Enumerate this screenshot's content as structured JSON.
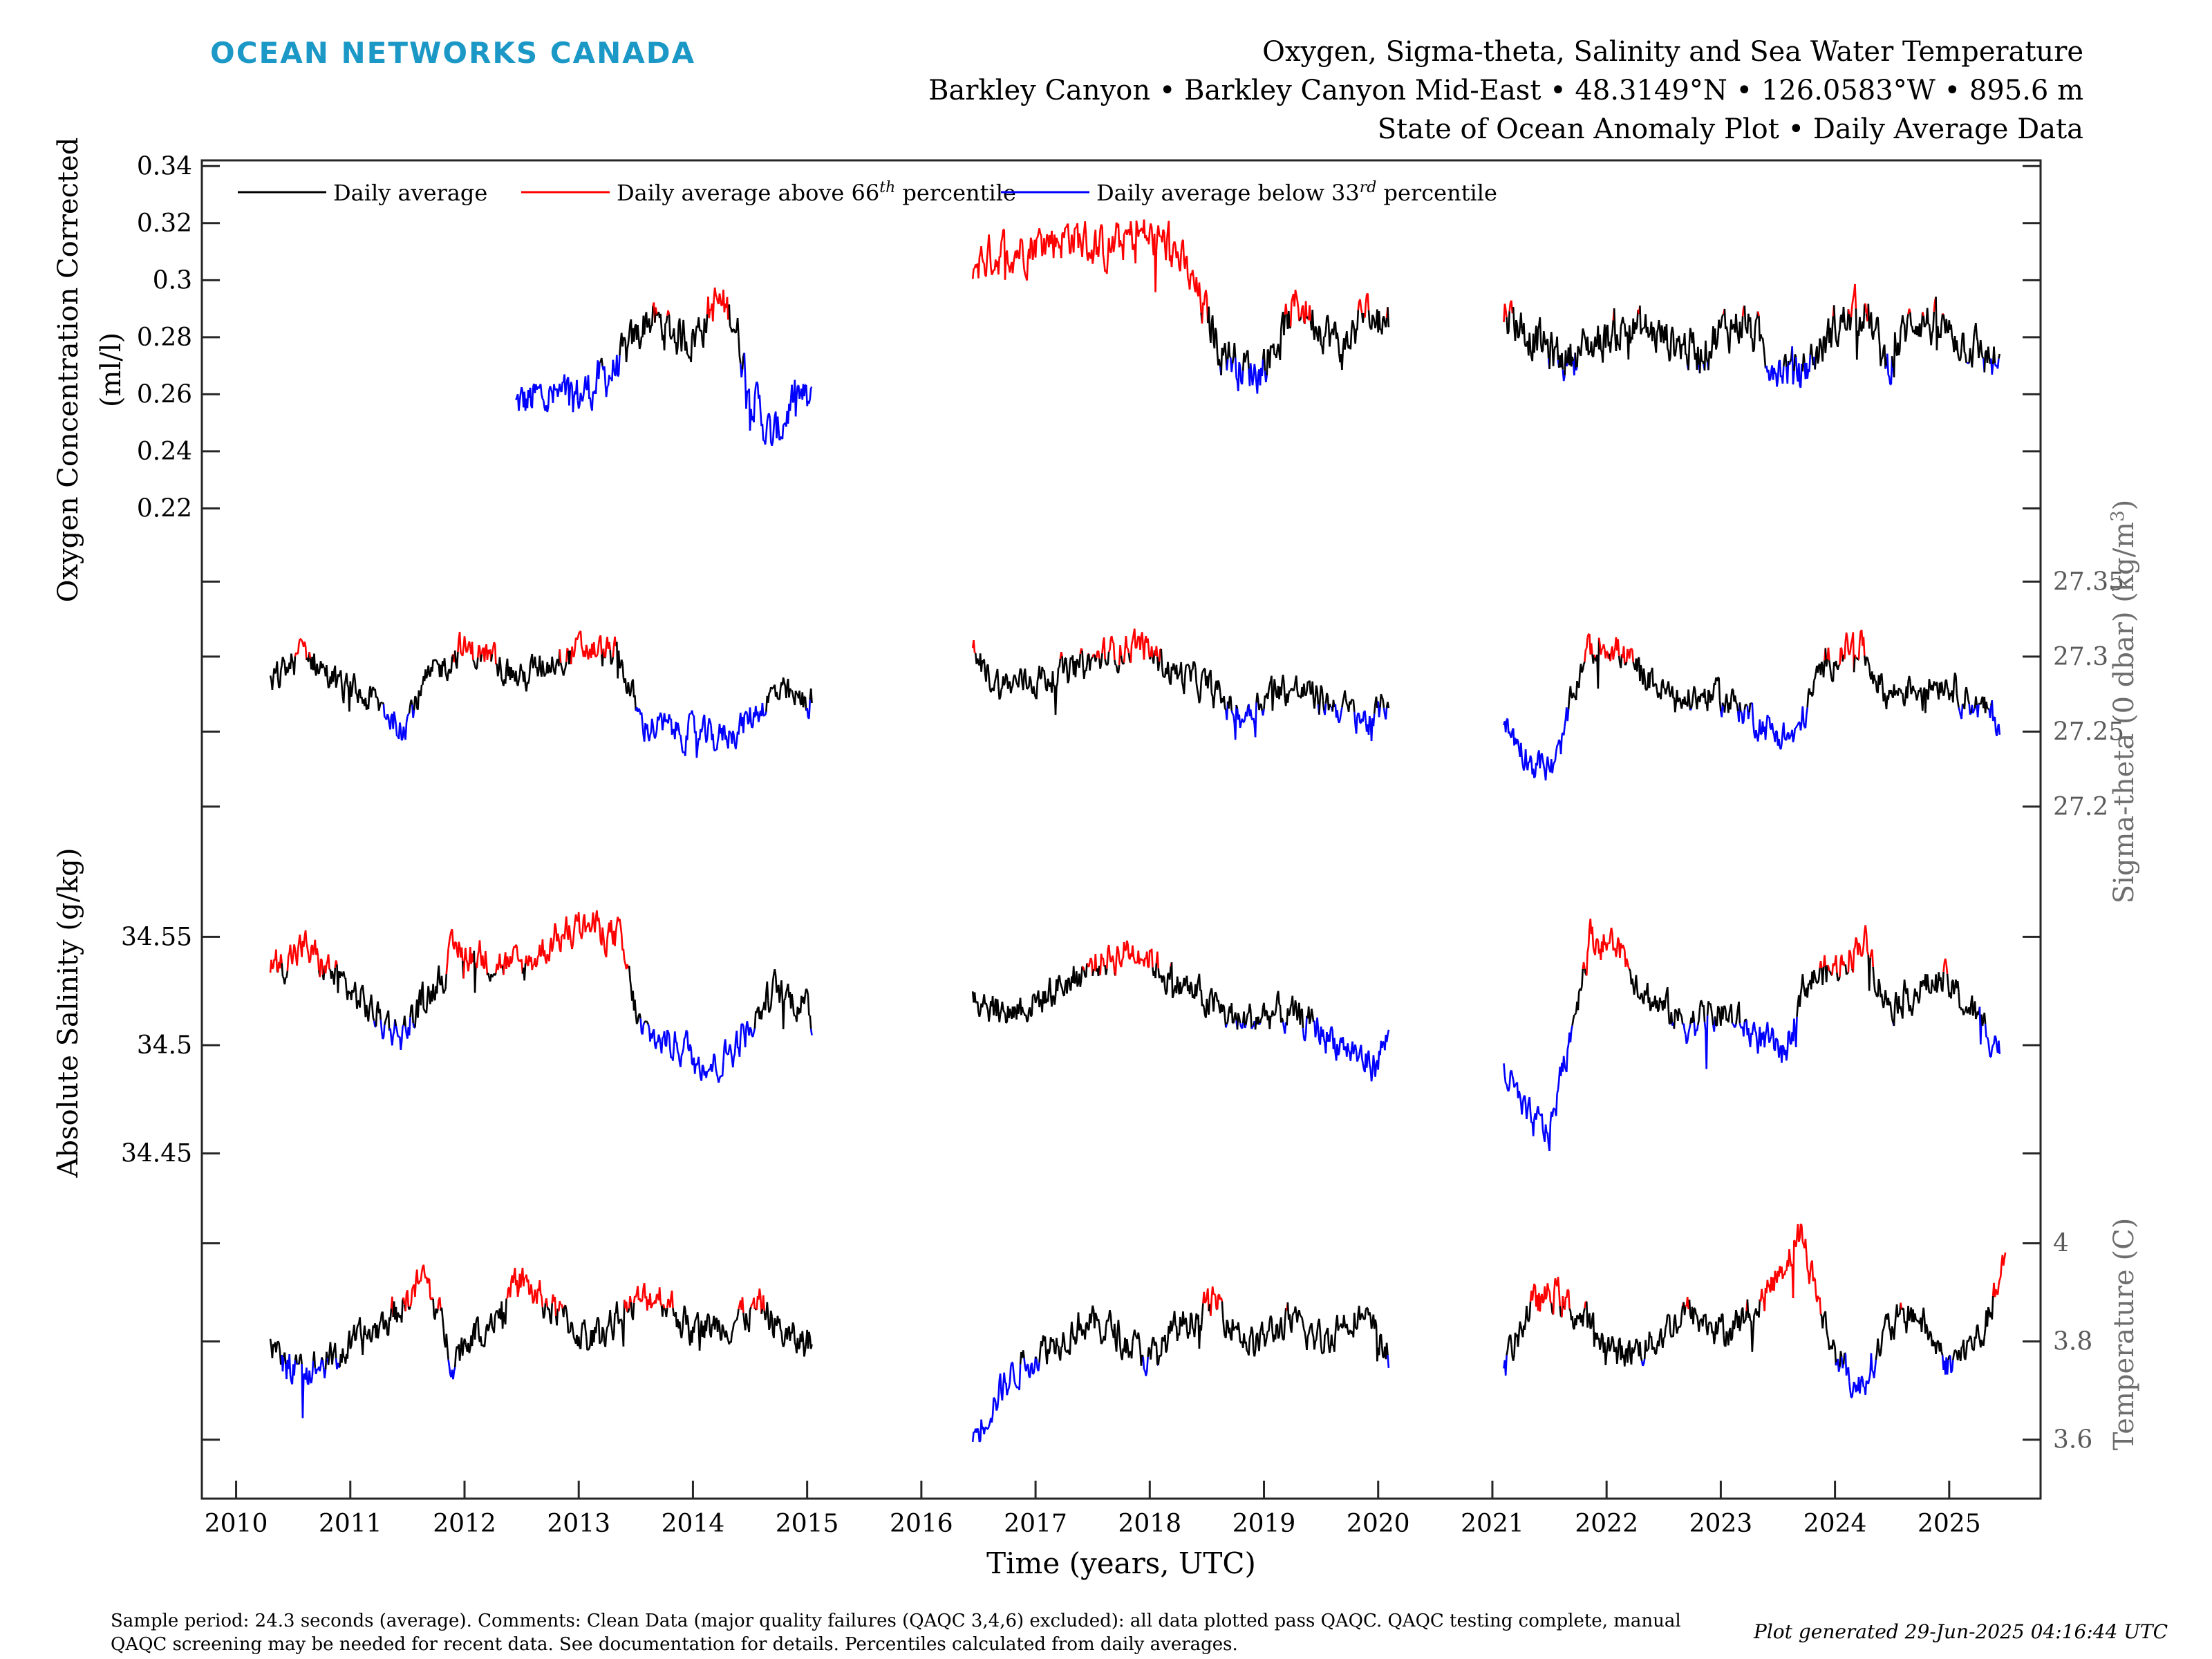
{
  "brand": "OCEAN NETWORKS CANADA",
  "header": {
    "line1": "Oxygen, Sigma-theta, Salinity and Sea Water Temperature",
    "line2": "Barkley Canyon • Barkley Canyon Mid-East • 48.3149°N • 126.0583°W • 895.6 m",
    "line3": "State of Ocean Anomaly Plot • Daily Average Data"
  },
  "footer": {
    "comment": "Sample period: 24.3 seconds (average). Comments: Clean Data (major quality failures (QAQC 3,4,6) excluded): all data plotted pass QAQC. QAQC testing complete, manual QAQC screening may be needed for recent data. See documentation for details. Percentiles calculated from daily averages.",
    "generated": "Plot generated 29-Jun-2025 04:16:44 UTC"
  },
  "legend": [
    {
      "label": "Daily average",
      "sup": "",
      "suffix": "",
      "color": "#000000"
    },
    {
      "label": "Daily average above 66",
      "sup": "th",
      "suffix": " percentile",
      "color": "#ff0000"
    },
    {
      "label": "Daily average below 33",
      "sup": "rd",
      "suffix": " percentile",
      "color": "#0000ff"
    }
  ],
  "chart_data": {
    "type": "line",
    "x_axis": {
      "label": "Time (years, UTC)",
      "range": [
        2009.7,
        2025.8
      ],
      "ticks": [
        "2010",
        "2011",
        "2012",
        "2013",
        "2014",
        "2015",
        "2016",
        "2017",
        "2018",
        "2019",
        "2020",
        "2021",
        "2022",
        "2023",
        "2024",
        "2025"
      ]
    },
    "colors": {
      "average": "#000000",
      "above_66th": "#ff0000",
      "below_33rd": "#0000ff"
    },
    "panels": [
      {
        "id": "oxygen",
        "ylabel_line1": "Oxygen Concentration Corrected",
        "ylabel_line2": "(ml/l)",
        "side": "left",
        "range": [
          0.2,
          0.342
        ],
        "ticks": [
          "0.22",
          "0.24",
          "0.26",
          "0.28",
          "0.3",
          "0.32",
          "0.34"
        ],
        "p33": 0.271,
        "p66": 0.288,
        "segments": [
          {
            "x": [
              2012.45,
              2012.7,
              2012.95,
              2013.2,
              2013.4,
              2013.6,
              2013.8,
              2014.0,
              2014.2,
              2014.35,
              2014.5,
              2014.7,
              2014.9,
              2015.05
            ],
            "y": [
              0.256,
              0.259,
              0.258,
              0.265,
              0.272,
              0.287,
              0.282,
              0.28,
              0.292,
              0.288,
              0.262,
              0.243,
              0.26,
              0.255
            ]
          },
          {
            "x": [
              2016.45,
              2016.7,
              2017.0,
              2017.3,
              2017.6,
              2017.9,
              2018.2,
              2018.4,
              2018.6,
              2018.8,
              2018.95,
              2019.1,
              2019.3,
              2019.5,
              2019.7,
              2019.85,
              2020.1
            ],
            "y": [
              0.306,
              0.31,
              0.313,
              0.316,
              0.31,
              0.316,
              0.312,
              0.296,
              0.278,
              0.27,
              0.268,
              0.278,
              0.292,
              0.285,
              0.275,
              0.288,
              0.286
            ]
          },
          {
            "x": [
              2021.1,
              2021.3,
              2021.6,
              2021.9,
              2022.2,
              2022.5,
              2022.8,
              2023.0,
              2023.2,
              2023.45,
              2023.7,
              2024.0,
              2024.25,
              2024.45,
              2024.7,
              2024.9,
              2025.15,
              2025.45
            ],
            "y": [
              0.29,
              0.282,
              0.272,
              0.278,
              0.284,
              0.28,
              0.275,
              0.282,
              0.286,
              0.272,
              0.267,
              0.283,
              0.291,
              0.27,
              0.288,
              0.283,
              0.279,
              0.269
            ]
          }
        ]
      },
      {
        "id": "sigma",
        "ylabel_line1": "Sigma-theta (0 dbar) (kg/m",
        "ylabel_sup": "3",
        "ylabel_tail": ")",
        "side": "right",
        "range": [
          27.17,
          27.37
        ],
        "ticks": [
          "27.2",
          "27.25",
          "27.3",
          "27.35"
        ],
        "p33": 27.265,
        "p66": 27.3,
        "segments": [
          {
            "x": [
              2010.3,
              2010.6,
              2010.9,
              2011.2,
              2011.45,
              2011.7,
              2011.95,
              2012.2,
              2012.5,
              2012.8,
              2013.1,
              2013.35,
              2013.55,
              2013.9,
              2014.2,
              2014.45,
              2014.7,
              2014.95,
              2015.05
            ],
            "y": [
              27.28,
              27.305,
              27.28,
              27.27,
              27.255,
              27.285,
              27.305,
              27.3,
              27.285,
              27.3,
              27.305,
              27.3,
              27.255,
              27.25,
              27.245,
              27.255,
              27.275,
              27.27,
              27.27
            ]
          },
          {
            "x": [
              2016.45,
              2016.7,
              2017.0,
              2017.3,
              2017.6,
              2017.9,
              2018.2,
              2018.5,
              2018.8,
              2019.1,
              2019.4,
              2019.7,
              2019.95,
              2020.1
            ],
            "y": [
              27.3,
              27.28,
              27.285,
              27.29,
              27.3,
              27.31,
              27.29,
              27.28,
              27.26,
              27.28,
              27.275,
              27.265,
              27.255,
              27.275
            ]
          },
          {
            "x": [
              2021.1,
              2021.35,
              2021.55,
              2021.8,
              2022.0,
              2022.3,
              2022.6,
              2022.9,
              2023.2,
              2023.45,
              2023.65,
              2023.9,
              2024.2,
              2024.45,
              2024.7,
              2024.95,
              2025.2,
              2025.45
            ],
            "y": [
              27.255,
              27.23,
              27.225,
              27.3,
              27.31,
              27.29,
              27.27,
              27.275,
              27.265,
              27.25,
              27.245,
              27.295,
              27.31,
              27.275,
              27.28,
              27.285,
              27.27,
              27.255
            ]
          }
        ]
      },
      {
        "id": "salinity",
        "ylabel_line1": "Absolute Salinity (g/kg)",
        "side": "left",
        "range": [
          34.44,
          34.59
        ],
        "ticks": [
          "34.45",
          "34.5",
          "34.55"
        ],
        "p33": 34.51,
        "p66": 34.535,
        "segments": [
          {
            "x": [
              2010.3,
              2010.6,
              2010.9,
              2011.2,
              2011.45,
              2011.7,
              2011.95,
              2012.2,
              2012.5,
              2012.8,
              2013.1,
              2013.35,
              2013.55,
              2013.9,
              2014.2,
              2014.45,
              2014.7,
              2014.95,
              2015.05
            ],
            "y": [
              34.535,
              34.545,
              34.53,
              34.515,
              34.505,
              34.525,
              34.545,
              34.54,
              34.535,
              34.55,
              34.555,
              34.55,
              34.505,
              34.5,
              34.49,
              34.505,
              34.525,
              34.52,
              34.51
            ]
          },
          {
            "x": [
              2016.45,
              2016.7,
              2017.0,
              2017.3,
              2017.6,
              2017.9,
              2018.2,
              2018.5,
              2018.8,
              2019.1,
              2019.4,
              2019.7,
              2019.95,
              2020.1
            ],
            "y": [
              34.525,
              34.515,
              34.52,
              34.53,
              34.54,
              34.545,
              34.53,
              34.52,
              34.51,
              34.515,
              34.51,
              34.5,
              34.49,
              34.505
            ]
          },
          {
            "x": [
              2021.1,
              2021.3,
              2021.5,
              2021.7,
              2021.85,
              2022.1,
              2022.4,
              2022.7,
              2023.0,
              2023.3,
              2023.55,
              2023.75,
              2024.0,
              2024.25,
              2024.45,
              2024.7,
              2024.95,
              2025.2,
              2025.45
            ],
            "y": [
              34.49,
              34.465,
              34.46,
              34.51,
              34.55,
              34.545,
              34.52,
              34.51,
              34.515,
              34.505,
              34.495,
              34.53,
              34.535,
              34.55,
              34.52,
              34.525,
              34.53,
              34.515,
              34.5
            ]
          }
        ]
      },
      {
        "id": "temperature",
        "ylabel_line1": "Temperature (C)",
        "side": "right",
        "range": [
          3.48,
          4.15
        ],
        "ticks": [
          "3.6",
          "3.8",
          "4"
        ],
        "p33": 3.76,
        "p66": 3.87,
        "segments": [
          {
            "x": [
              2010.3,
              2010.55,
              2010.8,
              2011.1,
              2011.4,
              2011.65,
              2011.9,
              2012.2,
              2012.5,
              2012.8,
              2013.1,
              2013.4,
              2013.7,
              2014.0,
              2014.3,
              2014.6,
              2014.85,
              2015.05
            ],
            "y": [
              3.78,
              3.73,
              3.76,
              3.8,
              3.86,
              3.93,
              3.77,
              3.84,
              3.92,
              3.86,
              3.8,
              3.86,
              3.9,
              3.82,
              3.84,
              3.87,
              3.8,
              3.8
            ]
          },
          {
            "x": [
              2016.45,
              2016.6,
              2016.85,
              2017.1,
              2017.4,
              2017.7,
              2018.0,
              2018.3,
              2018.6,
              2018.9,
              2019.2,
              2019.5,
              2019.8,
              2020.1
            ],
            "y": [
              3.6,
              3.67,
              3.75,
              3.79,
              3.84,
              3.82,
              3.76,
              3.84,
              3.88,
              3.79,
              3.84,
              3.8,
              3.86,
              3.78
            ]
          },
          {
            "x": [
              2021.1,
              2021.3,
              2021.55,
              2021.8,
              2022.1,
              2022.4,
              2022.7,
              2023.0,
              2023.3,
              2023.55,
              2023.7,
              2023.95,
              2024.2,
              2024.45,
              2024.7,
              2025.0,
              2025.3,
              2025.5
            ],
            "y": [
              3.74,
              3.86,
              3.9,
              3.84,
              3.77,
              3.8,
              3.86,
              3.82,
              3.86,
              3.96,
              4.02,
              3.8,
              3.7,
              3.82,
              3.86,
              3.75,
              3.82,
              3.96
            ]
          }
        ]
      }
    ]
  }
}
